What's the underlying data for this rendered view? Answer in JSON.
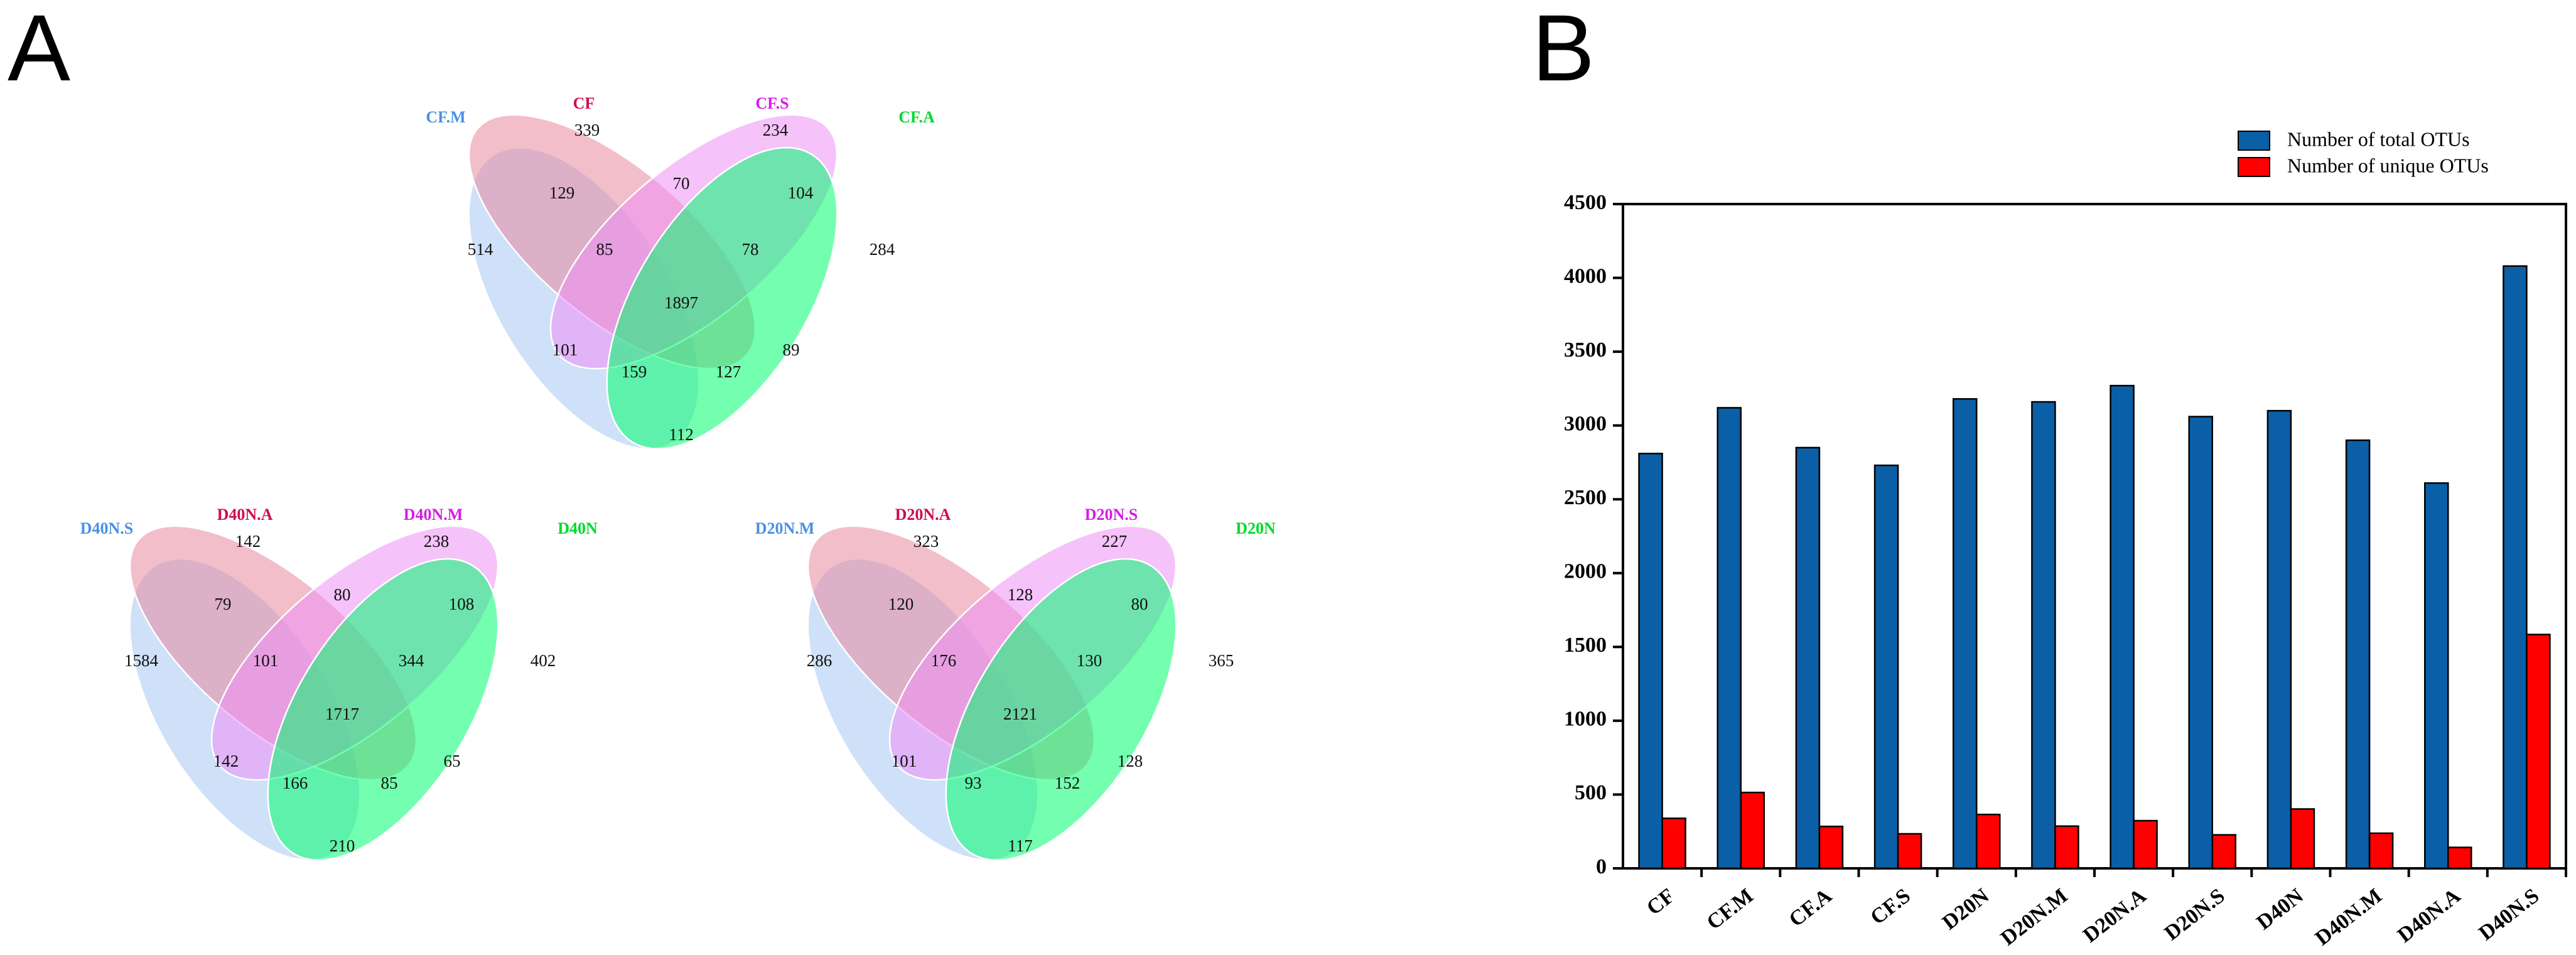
{
  "panels": {
    "left": "A",
    "right": "B"
  },
  "venns": [
    {
      "id": "top",
      "sets": [
        "CF.M",
        "CF",
        "CF.S",
        "CF.A"
      ],
      "values": {
        "m": 514,
        "c": 339,
        "s": 234,
        "a": 284,
        "mc": 129,
        "cs": 70,
        "sa": 104,
        "ms": 101,
        "ca": 89,
        "ma": 112,
        "mcs": 85,
        "csa": 78,
        "mca": 127,
        "msa": 159,
        "all": 1897
      }
    },
    {
      "id": "bottom-left",
      "sets": [
        "D40N.S",
        "D40N.A",
        "D40N.M",
        "D40N"
      ],
      "values": {
        "m": 1584,
        "c": 142,
        "s": 238,
        "a": 402,
        "mc": 79,
        "cs": 80,
        "sa": 108,
        "ms": 142,
        "ca": 65,
        "ma": 210,
        "mcs": 101,
        "csa": 344,
        "mca": 85,
        "msa": 166,
        "all": 1717
      }
    },
    {
      "id": "bottom-right",
      "sets": [
        "D20N.M",
        "D20N.A",
        "D20N.S",
        "D20N"
      ],
      "values": {
        "m": 286,
        "c": 323,
        "s": 227,
        "a": 365,
        "mc": 120,
        "cs": 128,
        "sa": 80,
        "ms": 101,
        "ca": 128,
        "ma": 117,
        "mcs": 176,
        "csa": 130,
        "mca": 152,
        "msa": 93,
        "all": 2121
      }
    }
  ],
  "chart_data": {
    "type": "bar",
    "categories": [
      "CF",
      "CF.M",
      "CF.A",
      "CF.S",
      "D20N",
      "D20N.M",
      "D20N.A",
      "D20N.S",
      "D40N",
      "D40N.M",
      "D40N.A",
      "D40N.S"
    ],
    "series": [
      {
        "name": "Number of total OTUs",
        "color": "#0a5fa6",
        "values": [
          2810,
          3120,
          2850,
          2730,
          3180,
          3160,
          3270,
          3060,
          3100,
          2900,
          2610,
          4080
        ]
      },
      {
        "name": "Number of unique OTUs",
        "color": "#ff0000",
        "values": [
          339,
          514,
          284,
          234,
          365,
          286,
          323,
          227,
          402,
          238,
          142,
          1584
        ]
      }
    ],
    "yticks": [
      0,
      500,
      1000,
      1500,
      2000,
      2500,
      3000,
      3500,
      4000,
      4500
    ],
    "ylim": [
      0,
      4500
    ],
    "title": "",
    "xlabel": "",
    "ylabel": "",
    "legend_position": "top-right"
  }
}
